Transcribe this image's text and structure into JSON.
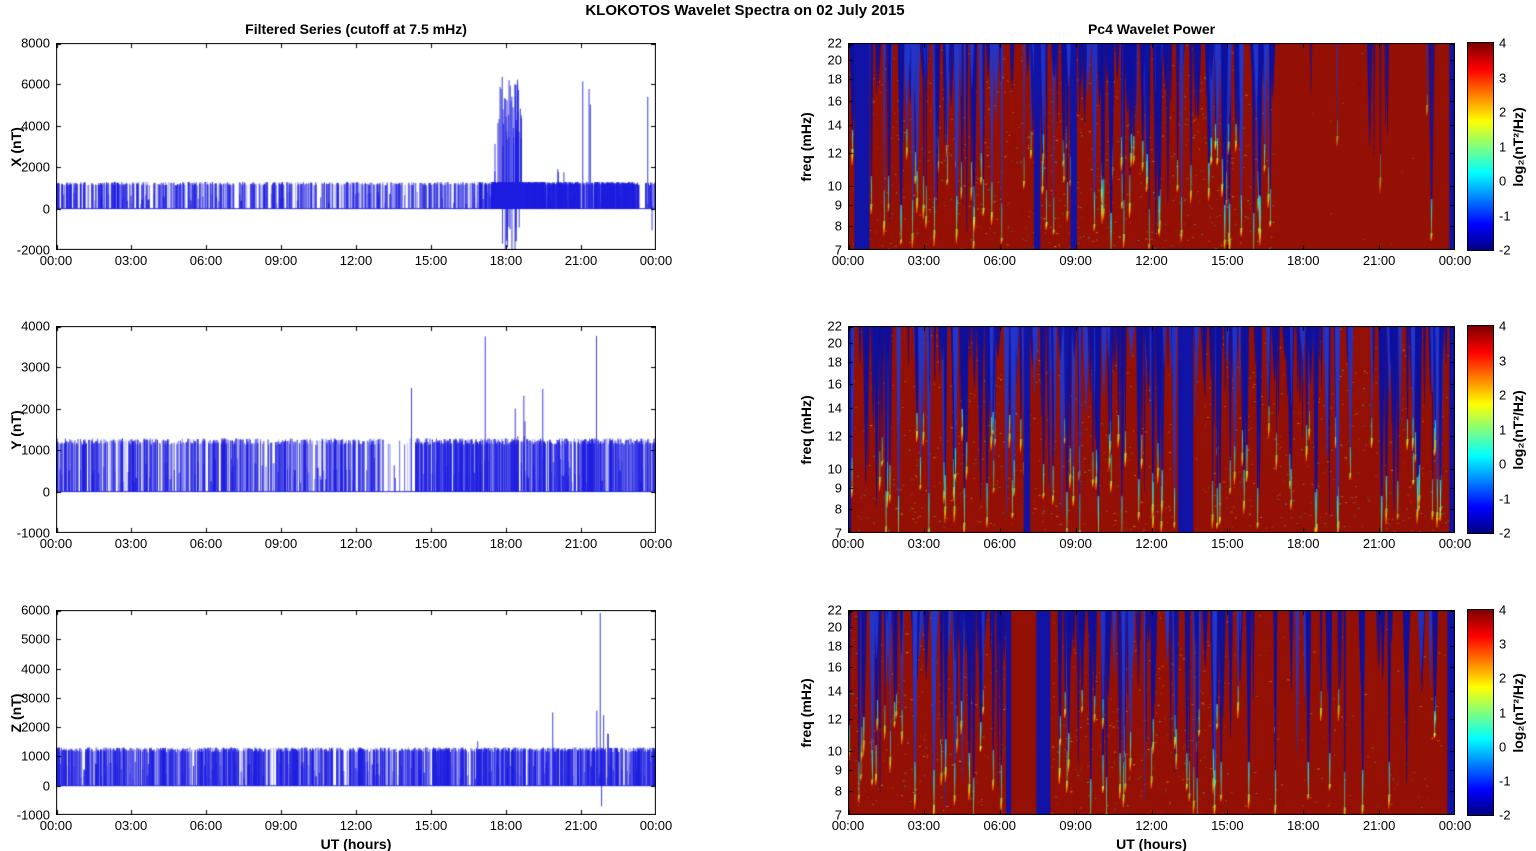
{
  "figure_title": "KLOKOTOS Wavelet Spectra on 02 July     2015",
  "time_ticks": [
    "00:00",
    "03:00",
    "06:00",
    "09:00",
    "12:00",
    "15:00",
    "18:00",
    "21:00",
    "00:00"
  ],
  "left": {
    "title": "Filtered Series (cutoff at 7.5 mHz)",
    "xlabel": "UT (hours)"
  },
  "right": {
    "title": "Pc4 Wavelet Power",
    "xlabel": "UT (hours)",
    "ylabel": "freq (mHz)",
    "colorbar": {
      "label": "log₂(nT²/Hz)",
      "ticks": [
        4,
        3,
        2,
        1,
        0,
        -1,
        -2
      ],
      "clim": [
        -2,
        4
      ],
      "colormap": "jet"
    }
  },
  "colors": {
    "series_blue": "#1e1ee1",
    "heat_bg": "#941004",
    "quiet_blue": "#1013a6",
    "wedge_blue": "#0d109e",
    "wedge_blue_light": "#2336cc",
    "axis": "#000000"
  },
  "chart_data": [
    {
      "id": "x-filtered-series",
      "type": "line",
      "ylabel": "X (nT)",
      "xlim_hours": [
        0,
        24
      ],
      "ylim": [
        -2000,
        8000
      ],
      "yticks": [
        -2000,
        0,
        2000,
        4000,
        6000,
        8000
      ],
      "baseline": 0,
      "spike_level": 1250,
      "seed": 11,
      "density": [
        [
          0,
          16.9,
          32
        ],
        [
          16.9,
          17.4,
          90
        ],
        [
          17.4,
          19.5,
          330
        ],
        [
          19.5,
          20.95,
          130
        ],
        [
          20.95,
          21.5,
          45
        ],
        [
          21.5,
          23.3,
          170
        ],
        [
          23.55,
          24,
          40
        ]
      ],
      "events": [
        {
          "t": 18.15,
          "spread": 0.5,
          "n": 42,
          "peak": 6400,
          "trough": -2150
        },
        {
          "t": 17.55,
          "spread": 0.1,
          "n": 2,
          "peak": 3400
        },
        {
          "t": 20.05,
          "spread": 0.3,
          "n": 3,
          "peak": 2100
        },
        {
          "t": 21.05,
          "n": 1,
          "peak": 6150
        },
        {
          "t": 21.35,
          "spread": 0.08,
          "n": 2,
          "peak": 6300
        },
        {
          "t": 23.65,
          "n": 1,
          "peak": 5400
        },
        {
          "t": 23.82,
          "n": 1,
          "peak": 100,
          "trough": -1050
        }
      ]
    },
    {
      "id": "y-filtered-series",
      "type": "line",
      "ylabel": "Y (nT)",
      "xlim_hours": [
        0,
        24
      ],
      "ylim": [
        -1000,
        4000
      ],
      "yticks": [
        -1000,
        0,
        1000,
        2000,
        3000,
        4000
      ],
      "baseline": 0,
      "spike_level": 1250,
      "seed": 22,
      "density": [
        [
          0,
          12.9,
          40
        ],
        [
          12.9,
          14.3,
          7
        ],
        [
          14.3,
          24,
          58
        ]
      ],
      "events": [
        {
          "t": 13.55,
          "n": 1,
          "peak": 330
        },
        {
          "t": 14.2,
          "n": 1,
          "peak": 2500
        },
        {
          "t": 17.15,
          "n": 1,
          "peak": 3750
        },
        {
          "t": 18.35,
          "spread": 0.4,
          "n": 6,
          "peak": 2450
        },
        {
          "t": 19.45,
          "n": 1,
          "peak": 2480
        },
        {
          "t": 21.6,
          "n": 1,
          "peak": 3760
        }
      ]
    },
    {
      "id": "z-filtered-series",
      "type": "line",
      "ylabel": "Z (nT)",
      "xlabel": "UT (hours)",
      "xlim_hours": [
        0,
        24
      ],
      "ylim": [
        -1000,
        6000
      ],
      "yticks": [
        -1000,
        0,
        1000,
        2000,
        3000,
        4000,
        5000,
        6000
      ],
      "baseline": 0,
      "spike_level": 1270,
      "seed": 33,
      "density": [
        [
          0,
          8.3,
          55
        ],
        [
          8.3,
          8.8,
          12
        ],
        [
          8.8,
          15.3,
          55
        ],
        [
          15.3,
          24,
          60
        ]
      ],
      "events": [
        {
          "t": 0.1,
          "n": 1,
          "peak": 1100
        },
        {
          "t": 16.85,
          "n": 1,
          "peak": 1520
        },
        {
          "t": 19.85,
          "n": 1,
          "peak": 2500
        },
        {
          "t": 21.75,
          "n": 1,
          "peak": 5900,
          "trough": -700
        },
        {
          "t": 21.85,
          "spread": 0.25,
          "n": 4,
          "peak": 2600
        }
      ]
    },
    {
      "id": "x-wavelet-power",
      "type": "heatmap",
      "ylabel": "freq (mHz)",
      "xlim_hours": [
        0,
        24
      ],
      "flim_mHz": [
        7,
        22
      ],
      "f_ticks": [
        7,
        8,
        9,
        10,
        12,
        14,
        16,
        18,
        20,
        22
      ],
      "clim": [
        -2,
        4
      ],
      "colormap": "jet",
      "seed": 44,
      "segments": [
        [
          0,
          7.3,
          75
        ],
        [
          7.3,
          9.2,
          28
        ],
        [
          9.2,
          16.8,
          92
        ],
        [
          16.8,
          23.5,
          3
        ]
      ],
      "bands": [
        [
          0.25,
          0.85
        ],
        [
          7.35,
          7.6
        ],
        [
          8.8,
          9.05
        ],
        [
          23.78,
          24
        ]
      ],
      "deep_streaks": [
        [
          2.1,
          0.95
        ],
        [
          4.3,
          0.9
        ],
        [
          10.4,
          1
        ],
        [
          12.3,
          0.9
        ],
        [
          14.9,
          0.95
        ],
        [
          16.3,
          0.9
        ]
      ],
      "faint_streaks": [
        [
          18.3,
          0.25
        ],
        [
          19.35,
          0.45
        ],
        [
          20.8,
          0.55
        ],
        [
          21.05,
          0.65
        ],
        [
          21.25,
          0.4
        ],
        [
          22.9,
          0.3
        ]
      ]
    },
    {
      "id": "y-wavelet-power",
      "type": "heatmap",
      "ylabel": "freq (mHz)",
      "xlim_hours": [
        0,
        24
      ],
      "flim_mHz": [
        7,
        22
      ],
      "f_ticks": [
        7,
        8,
        9,
        10,
        12,
        14,
        16,
        18,
        20,
        22
      ],
      "clim": [
        -2,
        4
      ],
      "colormap": "jet",
      "seed": 55,
      "segments": [
        [
          0,
          13.0,
          130
        ],
        [
          13.7,
          24,
          95
        ]
      ],
      "bands": [
        [
          0,
          0.12
        ],
        [
          6.95,
          7.2
        ],
        [
          13.05,
          13.65
        ],
        [
          23.78,
          24
        ]
      ],
      "deep_streaks": [
        [
          2.0,
          1
        ],
        [
          4.6,
          0.95
        ],
        [
          9.9,
          1
        ],
        [
          11.5,
          0.9
        ],
        [
          14.6,
          0.95
        ],
        [
          16.2,
          0.95
        ],
        [
          19.35,
          1
        ],
        [
          21.1,
          1
        ],
        [
          23.3,
          0.9
        ]
      ],
      "faint_streaks": []
    },
    {
      "id": "z-wavelet-power",
      "type": "heatmap",
      "ylabel": "freq (mHz)",
      "xlabel": "UT (hours)",
      "xlim_hours": [
        0,
        24
      ],
      "flim_mHz": [
        7,
        22
      ],
      "f_ticks": [
        7,
        8,
        9,
        10,
        12,
        14,
        16,
        18,
        20,
        22
      ],
      "clim": [
        -2,
        4
      ],
      "colormap": "jet",
      "seed": 66,
      "segments": [
        [
          0,
          6.2,
          58
        ],
        [
          8.0,
          15.2,
          70
        ],
        [
          15.2,
          24,
          26
        ]
      ],
      "bands": [
        [
          6.25,
          6.45
        ],
        [
          7.45,
          8.0
        ],
        [
          23.7,
          24
        ]
      ],
      "deep_streaks": [
        [
          2.65,
          0.9
        ],
        [
          3.4,
          0.95
        ],
        [
          4.8,
          0.85
        ],
        [
          9.6,
          1
        ],
        [
          10.9,
          0.9
        ],
        [
          13.4,
          0.85
        ],
        [
          14.5,
          0.95
        ],
        [
          15.85,
          0.9
        ],
        [
          16.9,
          0.95
        ],
        [
          18.2,
          0.9
        ],
        [
          19.05,
          0.85
        ],
        [
          20.35,
          0.95
        ],
        [
          21.4,
          0.9
        ],
        [
          23.2,
          0.6
        ]
      ],
      "faint_streaks": []
    }
  ]
}
